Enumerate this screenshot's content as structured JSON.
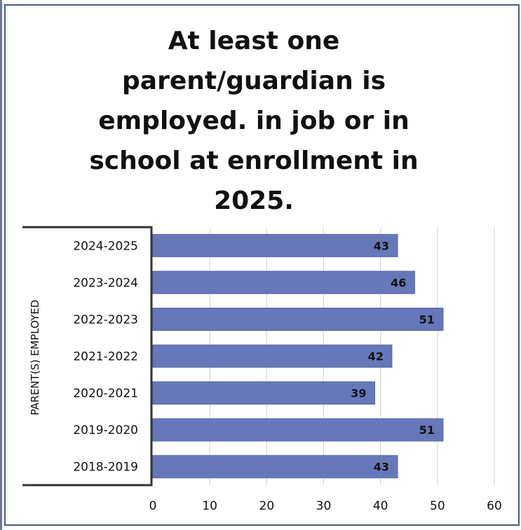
{
  "chart_data": {
    "type": "bar",
    "orientation": "horizontal",
    "title": "At least one parent/guardian is employed. in job or in school at enrollment in 2025.",
    "xlabel": "",
    "ylabel": "PARENT(S) EMPLOYED",
    "categories": [
      "2018-2019",
      "2019-2020",
      "2020-2021",
      "2021-2022",
      "2022-2023",
      "2023-2024",
      "2024-2025"
    ],
    "values": [
      43,
      51,
      39,
      42,
      51,
      46,
      43
    ],
    "xlim": [
      0,
      60
    ],
    "xticks": [
      "0",
      "10",
      "20",
      "30",
      "40",
      "50",
      "60"
    ],
    "grid": true,
    "legend": "none",
    "data_labels": true,
    "bar_color": "#6678b9",
    "frame_color": "#4a5a80"
  }
}
